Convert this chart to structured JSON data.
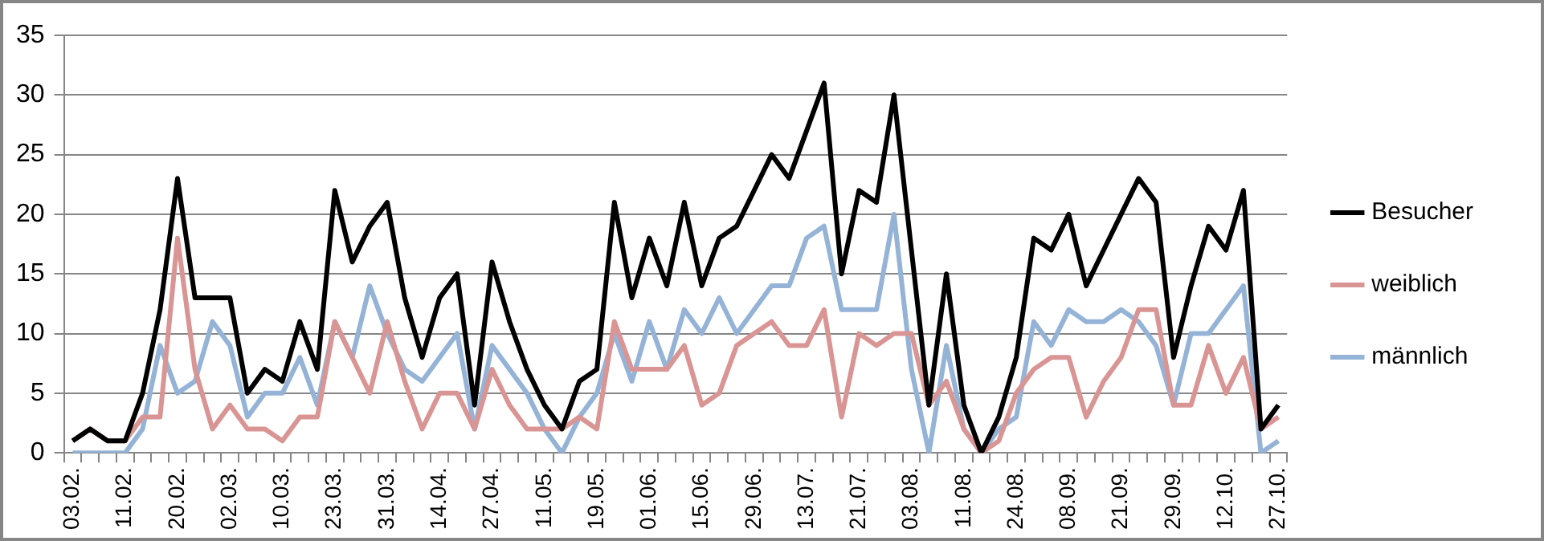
{
  "chart_data": {
    "type": "line",
    "categories": [
      "03.02.",
      null,
      null,
      "11.02.",
      null,
      null,
      "20.02.",
      null,
      null,
      "02.03.",
      null,
      null,
      "10.03.",
      null,
      null,
      "23.03.",
      null,
      null,
      "31.03.",
      null,
      null,
      "14.04.",
      null,
      null,
      "27.04.",
      null,
      null,
      "11.05.",
      null,
      null,
      "19.05.",
      null,
      null,
      "01.06.",
      null,
      null,
      "15.06.",
      null,
      null,
      "29.06.",
      null,
      null,
      "13.07.",
      null,
      null,
      "21.07.",
      null,
      null,
      "03.08.",
      null,
      null,
      "11.08.",
      null,
      null,
      "24.08.",
      null,
      null,
      "08.09.",
      null,
      null,
      "21.09.",
      null,
      null,
      "29.09.",
      null,
      null,
      "12.10.",
      null,
      null,
      "27.10."
    ],
    "series": [
      {
        "name": "Besucher",
        "color": "#000000",
        "values": [
          1,
          2,
          1,
          1,
          5,
          12,
          23,
          13,
          13,
          13,
          5,
          7,
          6,
          11,
          7,
          22,
          16,
          19,
          21,
          13,
          8,
          13,
          15,
          4,
          16,
          11,
          7,
          4,
          2,
          6,
          7,
          21,
          13,
          18,
          14,
          21,
          14,
          18,
          19,
          22,
          25,
          23,
          27,
          31,
          15,
          22,
          21,
          30,
          17,
          4,
          15,
          4,
          0,
          3,
          8,
          18,
          17,
          20,
          14,
          17,
          20,
          23,
          21,
          8,
          14,
          19,
          17,
          22,
          2,
          4
        ]
      },
      {
        "name": "weiblich",
        "color": "#d99594",
        "values": [
          1,
          2,
          1,
          1,
          3,
          3,
          18,
          7,
          2,
          4,
          2,
          2,
          1,
          3,
          3,
          11,
          8,
          5,
          11,
          6,
          2,
          5,
          5,
          2,
          7,
          4,
          2,
          2,
          2,
          3,
          2,
          11,
          7,
          7,
          7,
          9,
          4,
          5,
          9,
          10,
          11,
          9,
          9,
          12,
          3,
          10,
          9,
          10,
          10,
          4,
          6,
          2,
          0,
          1,
          5,
          7,
          8,
          8,
          3,
          6,
          8,
          12,
          12,
          4,
          4,
          9,
          5,
          8,
          2,
          3
        ]
      },
      {
        "name": "männlich",
        "color": "#95b3d7",
        "values": [
          0,
          0,
          0,
          0,
          2,
          9,
          5,
          6,
          11,
          9,
          3,
          5,
          5,
          8,
          4,
          11,
          8,
          14,
          10,
          7,
          6,
          8,
          10,
          2,
          9,
          7,
          5,
          2,
          0,
          3,
          5,
          10,
          6,
          11,
          7,
          12,
          10,
          13,
          10,
          12,
          14,
          14,
          18,
          19,
          12,
          12,
          12,
          20,
          7,
          0,
          9,
          2,
          0,
          2,
          3,
          11,
          9,
          12,
          11,
          11,
          12,
          11,
          9,
          4,
          10,
          10,
          12,
          14,
          0,
          1
        ]
      }
    ],
    "ylim": [
      0,
      35
    ],
    "yticks": [
      0,
      5,
      10,
      15,
      20,
      25,
      30,
      35
    ],
    "grid": "y",
    "legend": "right",
    "marker": "none",
    "line_style": "solid"
  }
}
